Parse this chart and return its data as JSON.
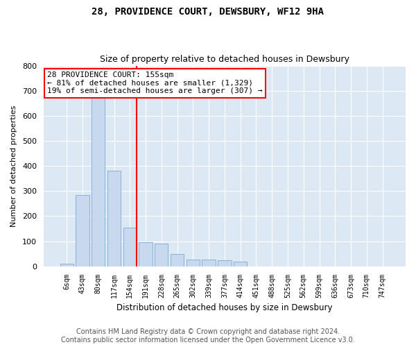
{
  "title": "28, PROVIDENCE COURT, DEWSBURY, WF12 9HA",
  "subtitle": "Size of property relative to detached houses in Dewsbury",
  "xlabel": "Distribution of detached houses by size in Dewsbury",
  "ylabel": "Number of detached properties",
  "bar_labels": [
    "6sqm",
    "43sqm",
    "80sqm",
    "117sqm",
    "154sqm",
    "191sqm",
    "228sqm",
    "265sqm",
    "302sqm",
    "339sqm",
    "377sqm",
    "414sqm",
    "451sqm",
    "488sqm",
    "525sqm",
    "562sqm",
    "599sqm",
    "636sqm",
    "673sqm",
    "710sqm",
    "747sqm"
  ],
  "bar_heights": [
    10,
    285,
    690,
    380,
    155,
    95,
    90,
    50,
    28,
    27,
    25,
    18,
    0,
    0,
    0,
    0,
    0,
    0,
    0,
    0,
    0
  ],
  "bar_color": "#c8d8ee",
  "bar_edge_color": "#7aabd0",
  "property_line_idx": 4,
  "annotation_text": "28 PROVIDENCE COURT: 155sqm\n← 81% of detached houses are smaller (1,329)\n19% of semi-detached houses are larger (307) →",
  "annotation_box_color": "white",
  "annotation_box_edge_color": "red",
  "vline_color": "red",
  "ylim": [
    0,
    800
  ],
  "yticks": [
    0,
    100,
    200,
    300,
    400,
    500,
    600,
    700,
    800
  ],
  "background_color": "#dde8f5",
  "grid_color": "white",
  "footer_line1": "Contains HM Land Registry data © Crown copyright and database right 2024.",
  "footer_line2": "Contains public sector information licensed under the Open Government Licence v3.0.",
  "title_fontsize": 10,
  "subtitle_fontsize": 9,
  "annotation_fontsize": 8,
  "footer_fontsize": 7
}
